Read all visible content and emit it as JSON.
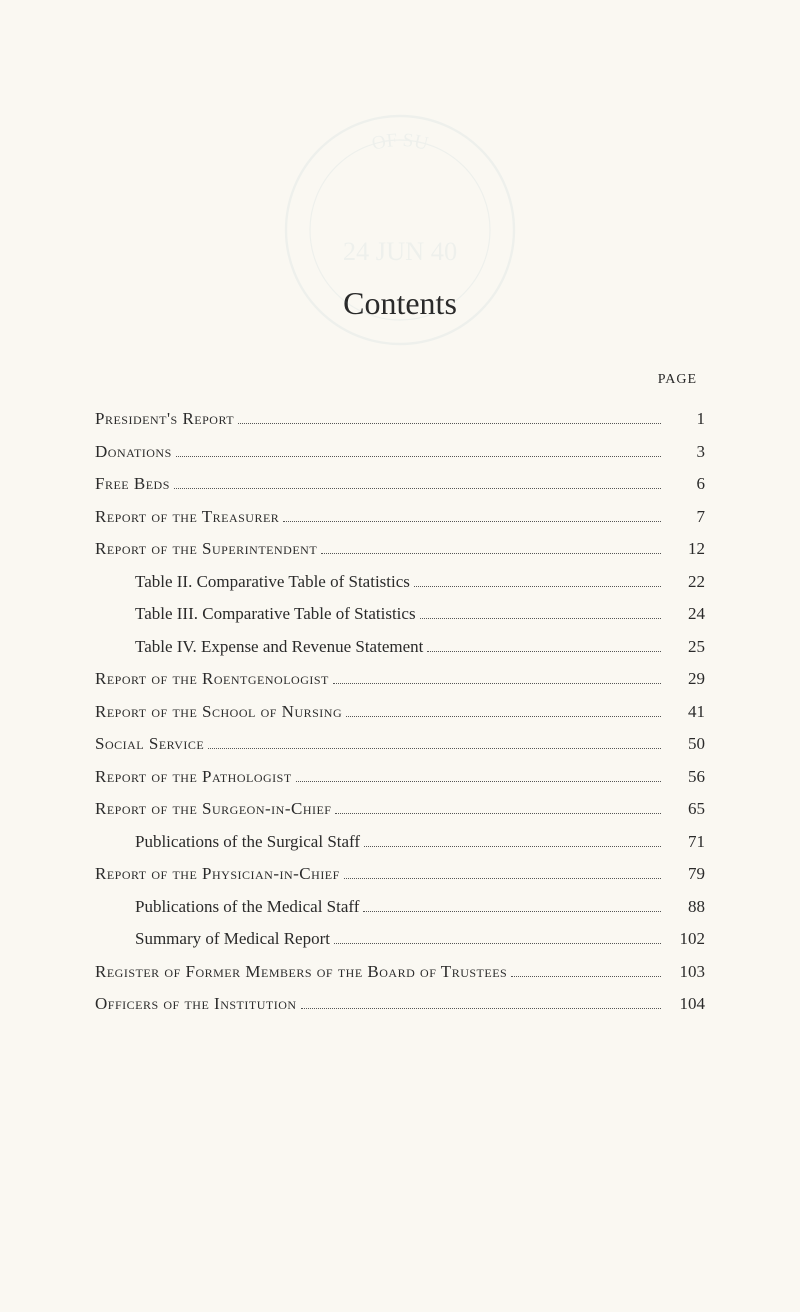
{
  "watermark": {
    "top_text": "OF SU",
    "center_text": "24 JUN 40",
    "stroke_color": "#6a9fb5",
    "opacity": 0.08
  },
  "title": "Contents",
  "page_header": "PAGE",
  "font": {
    "body_size": 17,
    "title_size": 32,
    "header_size": 14
  },
  "colors": {
    "background": "#faf8f2",
    "text": "#2a2a2a",
    "dots": "#555555"
  },
  "toc": [
    {
      "label": "President's Report",
      "page": "1",
      "smallcaps": true,
      "indent": 0
    },
    {
      "label": "Donations",
      "page": "3",
      "smallcaps": true,
      "indent": 0
    },
    {
      "label": "Free Beds",
      "page": "6",
      "smallcaps": true,
      "indent": 0
    },
    {
      "label": "Report of the Treasurer",
      "page": "7",
      "smallcaps": true,
      "indent": 0
    },
    {
      "label": "Report of the Superintendent",
      "page": "12",
      "smallcaps": true,
      "indent": 0
    },
    {
      "label": "Table II. Comparative Table of Statistics",
      "page": "22",
      "smallcaps": false,
      "indent": 1
    },
    {
      "label": "Table III. Comparative Table of Statistics",
      "page": "24",
      "smallcaps": false,
      "indent": 1
    },
    {
      "label": "Table IV. Expense and Revenue Statement",
      "page": "25",
      "smallcaps": false,
      "indent": 1
    },
    {
      "label": "Report of the Roentgenologist",
      "page": "29",
      "smallcaps": true,
      "indent": 0
    },
    {
      "label": "Report of the School of Nursing",
      "page": "41",
      "smallcaps": true,
      "indent": 0
    },
    {
      "label": "Social Service",
      "page": "50",
      "smallcaps": true,
      "indent": 0
    },
    {
      "label": "Report of the Pathologist",
      "page": "56",
      "smallcaps": true,
      "indent": 0
    },
    {
      "label": "Report of the Surgeon-in-Chief",
      "page": "65",
      "smallcaps": true,
      "indent": 0
    },
    {
      "label": "Publications of the Surgical Staff",
      "page": "71",
      "smallcaps": false,
      "indent": 1
    },
    {
      "label": "Report of the Physician-in-Chief",
      "page": "79",
      "smallcaps": true,
      "indent": 0
    },
    {
      "label": "Publications of the Medical Staff",
      "page": "88",
      "smallcaps": false,
      "indent": 1
    },
    {
      "label": "Summary of Medical Report",
      "page": "102",
      "smallcaps": false,
      "indent": 1
    },
    {
      "label": "Register of Former Members of the Board of Trustees",
      "page": "103",
      "smallcaps": true,
      "indent": 0
    },
    {
      "label": "Officers of the Institution",
      "page": "104",
      "smallcaps": true,
      "indent": 0
    }
  ]
}
